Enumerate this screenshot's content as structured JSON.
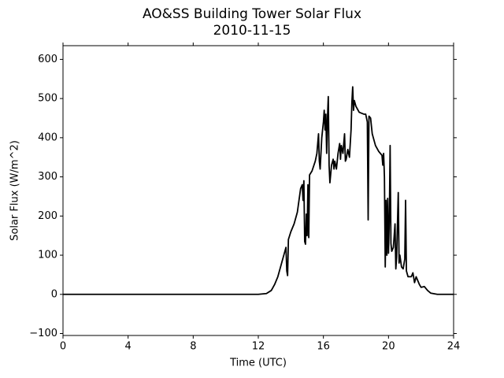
{
  "chart_data": {
    "type": "line",
    "title": "AO&SS Building Tower Solar Flux",
    "subtitle": "2010-11-15",
    "x_label": "Time (UTC)",
    "y_label": "Solar Flux (W/m^2)",
    "xlim": [
      0,
      24
    ],
    "xticks": [
      0,
      4,
      8,
      12,
      16,
      20,
      24
    ],
    "ylim": [
      -105,
      635
    ],
    "yticks": [
      {
        "value": -100,
        "label": "−100"
      },
      0,
      100,
      200,
      300,
      400,
      500,
      600
    ],
    "grid": false,
    "series": [
      {
        "color": "#000000",
        "x": [
          0,
          12,
          12.5,
          12.8,
          13.0,
          13.2,
          13.4,
          13.6,
          13.7,
          13.75,
          13.8,
          13.85,
          14.0,
          14.2,
          14.4,
          14.5,
          14.6,
          14.7,
          14.75,
          14.8,
          14.85,
          14.9,
          14.95,
          15.0,
          15.05,
          15.1,
          15.15,
          15.3,
          15.5,
          15.6,
          15.7,
          15.75,
          15.8,
          15.9,
          16.0,
          16.05,
          16.1,
          16.15,
          16.2,
          16.25,
          16.3,
          16.35,
          16.4,
          16.5,
          16.6,
          16.65,
          16.7,
          16.8,
          16.9,
          17.0,
          17.05,
          17.1,
          17.2,
          17.3,
          17.35,
          17.4,
          17.5,
          17.6,
          17.7,
          17.75,
          17.8,
          17.85,
          17.9,
          18.0,
          18.2,
          18.5,
          18.6,
          18.7,
          18.75,
          18.8,
          18.9,
          19.0,
          19.2,
          19.4,
          19.6,
          19.65,
          19.7,
          19.75,
          19.8,
          19.85,
          19.9,
          19.95,
          20.0,
          20.05,
          20.1,
          20.15,
          20.2,
          20.3,
          20.4,
          20.45,
          20.5,
          20.6,
          20.65,
          20.7,
          20.8,
          20.9,
          21.0,
          21.05,
          21.1,
          21.2,
          21.4,
          21.5,
          21.6,
          21.7,
          21.8,
          21.9,
          22.0,
          22.2,
          22.4,
          22.6,
          23.0,
          24
        ],
        "values": [
          0,
          0,
          2,
          10,
          25,
          45,
          75,
          105,
          120,
          60,
          48,
          140,
          160,
          180,
          210,
          240,
          270,
          280,
          240,
          290,
          135,
          128,
          205,
          150,
          280,
          145,
          305,
          315,
          340,
          360,
          410,
          340,
          320,
          400,
          440,
          470,
          420,
          460,
          360,
          450,
          505,
          330,
          285,
          330,
          345,
          320,
          340,
          320,
          360,
          385,
          345,
          380,
          360,
          410,
          340,
          345,
          370,
          350,
          420,
          490,
          530,
          470,
          495,
          480,
          465,
          460,
          460,
          440,
          190,
          455,
          450,
          410,
          380,
          365,
          355,
          330,
          360,
          300,
          70,
          240,
          100,
          245,
          105,
          190,
          380,
          130,
          110,
          120,
          180,
          65,
          95,
          260,
          80,
          100,
          70,
          65,
          90,
          240,
          60,
          45,
          45,
          55,
          30,
          45,
          35,
          25,
          18,
          20,
          10,
          3,
          0,
          0
        ]
      }
    ]
  }
}
